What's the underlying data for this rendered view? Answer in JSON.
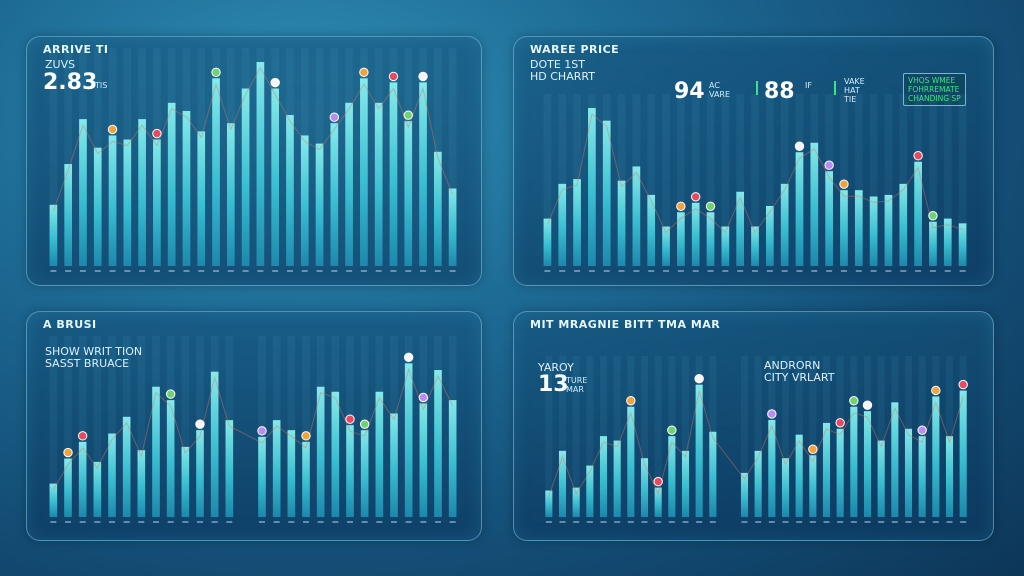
{
  "colors": {
    "background": "#134c74",
    "bar_top": "#7df0f0",
    "bar_bottom": "#1c97b8",
    "accent": "#3fe08a",
    "marker_colors": [
      "#f2a23a",
      "#e84a5f",
      "#6fd36f",
      "#f5f5f5",
      "#b98cf2"
    ]
  },
  "panels": [
    {
      "title": "ARRIVE TI",
      "subtitle": "ZUVS",
      "big_value": "2.83",
      "big_unit": "TIS"
    },
    {
      "title": "WAREE PRICE",
      "subtitle_lines": [
        "DOTE 1ST",
        "HD CHARRT"
      ],
      "stat1_value": "94",
      "stat1_unit_lines": [
        "AC",
        "VARE"
      ],
      "stat2_value": "88",
      "stat2_unit_lines": [
        "IF",
        ""
      ],
      "stat3_unit_lines": [
        "VAKE",
        "HAT",
        "TIE"
      ],
      "badge_lines": [
        "VHOS WMEE",
        "FOHRREMATE",
        "CHANDING SP"
      ]
    },
    {
      "title": "A BRUSI",
      "subtitle_lines": [
        "SHOW WRIT TION",
        "SASST BRUACE"
      ]
    },
    {
      "title": "MIT MRAGNIE BITT TMA MAR",
      "left_label_lines": [
        "YAROY"
      ],
      "left_value": "13",
      "left_unit_lines": [
        "TURE",
        "MAR"
      ],
      "right_label_lines": [
        "ANDRORN",
        "CITY VRLART"
      ]
    }
  ],
  "chart_data": [
    {
      "type": "bar",
      "title": "ARRIVE TI",
      "values": [
        30,
        50,
        72,
        58,
        64,
        62,
        72,
        62,
        80,
        76,
        66,
        92,
        70,
        87,
        100,
        87,
        74,
        64,
        60,
        70,
        80,
        92,
        80,
        90,
        71,
        90,
        56,
        38
      ],
      "ylim": [
        0,
        100
      ],
      "markers": [
        4,
        7,
        11,
        15,
        19,
        21,
        23,
        24,
        25
      ]
    },
    {
      "type": "bar",
      "title": "WAREE PRICE",
      "values": [
        30,
        52,
        55,
        100,
        92,
        54,
        63,
        45,
        25,
        34,
        40,
        34,
        25,
        47,
        25,
        38,
        52,
        72,
        78,
        60,
        48,
        48,
        44,
        45,
        52,
        66,
        28,
        30,
        27
      ],
      "ylim": [
        0,
        100
      ],
      "markers": [
        9,
        10,
        11,
        17,
        19,
        20,
        25,
        26
      ]
    },
    {
      "type": "bar",
      "title": "A BRUSI",
      "values": [
        20,
        35,
        45,
        33,
        50,
        60,
        40,
        78,
        70,
        42,
        52,
        87,
        58,
        48,
        58,
        52,
        45,
        78,
        75,
        55,
        52,
        75,
        62,
        92,
        68,
        88,
        70
      ],
      "ylim": [
        0,
        100
      ],
      "markers": [
        1,
        2,
        8,
        10,
        13,
        16,
        19,
        20,
        23,
        24
      ]
    },
    {
      "type": "bar",
      "title": "MIT MRAGNIE BITT TMA MAR",
      "values": [
        18,
        45,
        20,
        35,
        55,
        52,
        75,
        40,
        20,
        55,
        45,
        90,
        58,
        30,
        45,
        66,
        40,
        56,
        42,
        64,
        60,
        75,
        72,
        52,
        78,
        60,
        55,
        82,
        55,
        86
      ],
      "ylim": [
        0,
        100
      ],
      "markers": [
        6,
        8,
        9,
        11,
        15,
        18,
        20,
        21,
        22,
        26,
        27,
        29
      ]
    }
  ]
}
